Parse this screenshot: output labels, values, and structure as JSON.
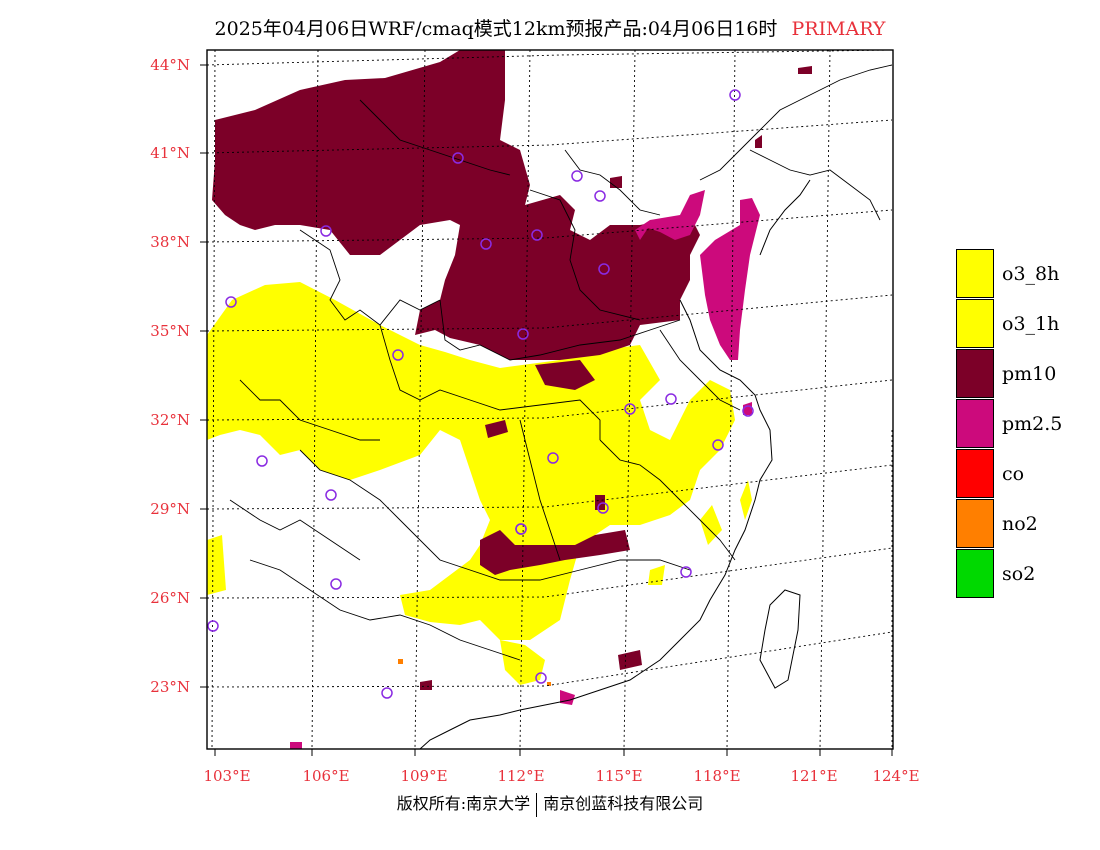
{
  "header": {
    "title": "2025年04月06日WRF/cmaq模式12km预报产品:04月06日16时",
    "tag": "PRIMARY"
  },
  "map": {
    "lat_labels": [
      "44°N",
      "41°N",
      "38°N",
      "35°N",
      "32°N",
      "29°N",
      "26°N",
      "23°N"
    ],
    "lon_labels": [
      "103°E",
      "106°E",
      "109°E",
      "112°E",
      "115°E",
      "118°E",
      "121°E",
      "124°E"
    ],
    "colors": {
      "pm10": "#7c0028",
      "pm25": "#cc0a7c",
      "o3": "#ffff00",
      "no2": "#ff7f00",
      "stations": "#8a2be2",
      "boundaries": "#000000",
      "graticule": "#000000"
    },
    "station_count": 26
  },
  "legend": {
    "items": [
      {
        "label": "o3_8h",
        "color": "#ffff00"
      },
      {
        "label": "o3_1h",
        "color": "#ffff00"
      },
      {
        "label": "pm10",
        "color": "#7c0028"
      },
      {
        "label": "pm2.5",
        "color": "#cc0a7c"
      },
      {
        "label": "co",
        "color": "#ff0000"
      },
      {
        "label": "no2",
        "color": "#ff7f00"
      },
      {
        "label": "so2",
        "color": "#00d900"
      }
    ]
  },
  "footer": {
    "left": "版权所有:南京大学",
    "right": "南京创蓝科技有限公司"
  }
}
